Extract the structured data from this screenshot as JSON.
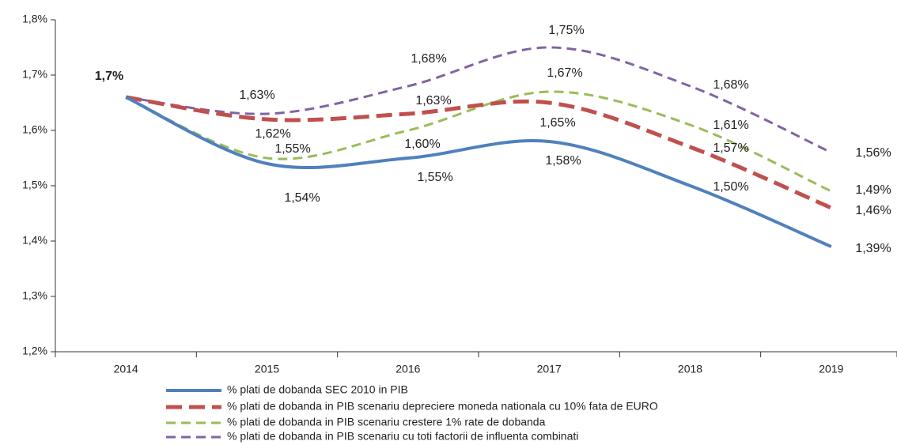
{
  "chart_data": {
    "type": "line",
    "categories": [
      "2014",
      "2015",
      "2016",
      "2017",
      "2018",
      "2019"
    ],
    "ylim": [
      1.2,
      1.8
    ],
    "yticks": [
      {
        "value": 1.2,
        "label": "1,2%"
      },
      {
        "value": 1.3,
        "label": "1,3%"
      },
      {
        "value": 1.4,
        "label": "1,4%"
      },
      {
        "value": 1.5,
        "label": "1,5%"
      },
      {
        "value": 1.6,
        "label": "1,6%"
      },
      {
        "value": 1.7,
        "label": "1,7%"
      },
      {
        "value": 1.8,
        "label": "1,8%"
      }
    ],
    "series": [
      {
        "name": "% plati de dobanda SEC 2010 in PIB",
        "color": "#4f81bd",
        "dash": "solid",
        "values": [
          1.66,
          1.54,
          1.55,
          1.58,
          1.5,
          1.39
        ],
        "value_labels": [
          "1,7%",
          "1,54%",
          "1,55%",
          "1,58%",
          "1,50%",
          "1,39%"
        ]
      },
      {
        "name": "% plati de dobanda in PIB scenariu depreciere moneda nationala cu 10% fata de  EURO",
        "color": "#c0504d",
        "dash": "long",
        "values": [
          1.66,
          1.62,
          1.63,
          1.65,
          1.57,
          1.46
        ],
        "value_labels": [
          null,
          "1,62%",
          "1,63%",
          "1,65%",
          "1,57%",
          "1,46%"
        ]
      },
      {
        "name": "% plati de dobanda in PIB scenariu crestere 1% rate de dobanda",
        "color": "#9bbb59",
        "dash": "medium",
        "values": [
          1.66,
          1.55,
          1.6,
          1.67,
          1.61,
          1.49
        ],
        "value_labels": [
          null,
          "1,55%",
          "1,60%",
          "1,67%",
          "1,61%",
          "1,49%"
        ]
      },
      {
        "name": "% plati de dobanda in PIB scenariu cu toti factorii de influenta combinati",
        "color": "#8064a2",
        "dash": "medium",
        "values": [
          1.66,
          1.63,
          1.68,
          1.75,
          1.68,
          1.56
        ],
        "value_labels": [
          null,
          "1,63%",
          "1,68%",
          "1,75%",
          "1,68%",
          "1,56%"
        ]
      }
    ]
  }
}
